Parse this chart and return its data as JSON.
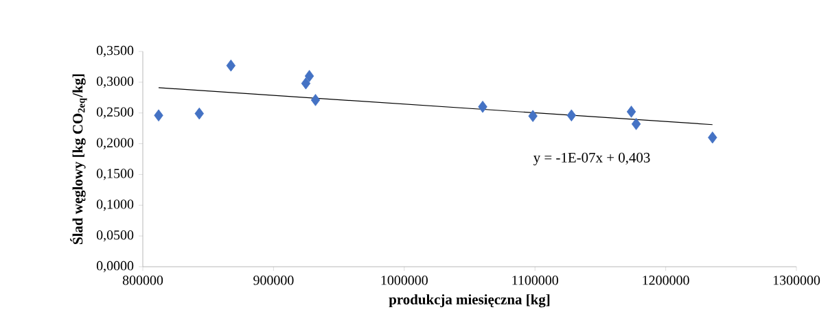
{
  "chart_data": {
    "type": "scatter",
    "xlabel": "produkcja  miesięczna [kg]",
    "ylabel": "Ślad węglowy [kg CO$_{2eq}$/kg]",
    "series": [
      {
        "color": "#4472c4",
        "marker": "diamond",
        "x": [
          812100,
          843200,
          867400,
          924700,
          927400,
          932100,
          1060000,
          1098400,
          1127900,
          1173700,
          1177400,
          1235800
        ],
        "values": [
          0.246,
          0.249,
          0.327,
          0.298,
          0.31,
          0.271,
          0.26,
          0.245,
          0.246,
          0.252,
          0.232,
          0.21
        ]
      },
      {
        "type": "line",
        "color": "#000000",
        "marker": "none",
        "x": [
          812100,
          1235800
        ],
        "values": [
          0.291,
          0.231
        ]
      }
    ],
    "xlim": [
      800000,
      1300000
    ],
    "ylim": [
      0,
      0.35
    ],
    "xticks": [
      800000,
      900000,
      1000000,
      1100000,
      1200000,
      1300000
    ],
    "yticks": [
      {
        "value": 0,
        "label": "0,0000"
      },
      {
        "value": 0.05,
        "label": "0,0500"
      },
      {
        "value": 0.1,
        "label": "0,1000"
      },
      {
        "value": 0.15,
        "label": "0,1500"
      },
      {
        "value": 0.2,
        "label": "0,2000"
      },
      {
        "value": 0.25,
        "label": "0,2500"
      },
      {
        "value": 0.3,
        "label": "0,3000"
      },
      {
        "value": 0.35,
        "label": "0,3500"
      }
    ],
    "annotations": [
      "y = -1E-07x + 0,403"
    ],
    "grid": false
  }
}
